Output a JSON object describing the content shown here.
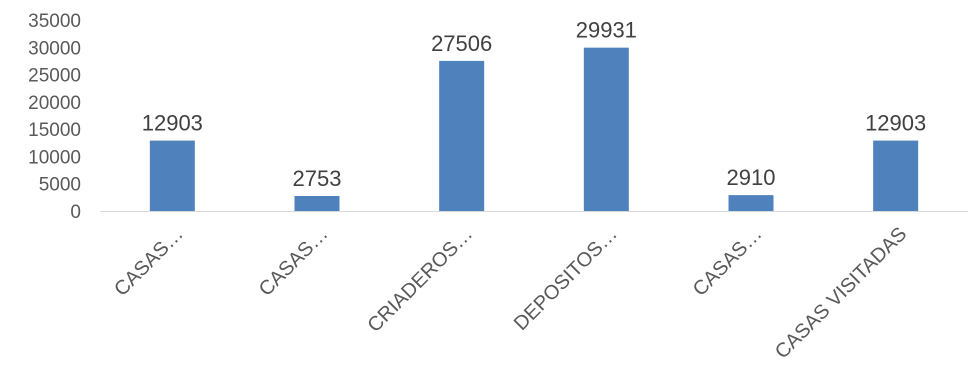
{
  "chart_data": {
    "type": "bar",
    "categories": [
      "CASAS…",
      "CASAS…",
      "CRIADEROS…",
      "DEPOSITOS…",
      "CASAS…",
      "CASAS VISITADAS"
    ],
    "values": [
      12903,
      2753,
      27506,
      29931,
      2910,
      12903
    ],
    "data_labels": [
      "12903",
      "2753",
      "27506",
      "29931",
      "2910",
      "12903"
    ],
    "yticks": [
      "0",
      "5000",
      "10000",
      "15000",
      "20000",
      "25000",
      "30000",
      "35000"
    ],
    "ylim": [
      0,
      35000
    ],
    "grid": false,
    "legend": "none",
    "title": "",
    "xlabel": "",
    "ylabel": "",
    "bar_color": "#4f81bd"
  }
}
